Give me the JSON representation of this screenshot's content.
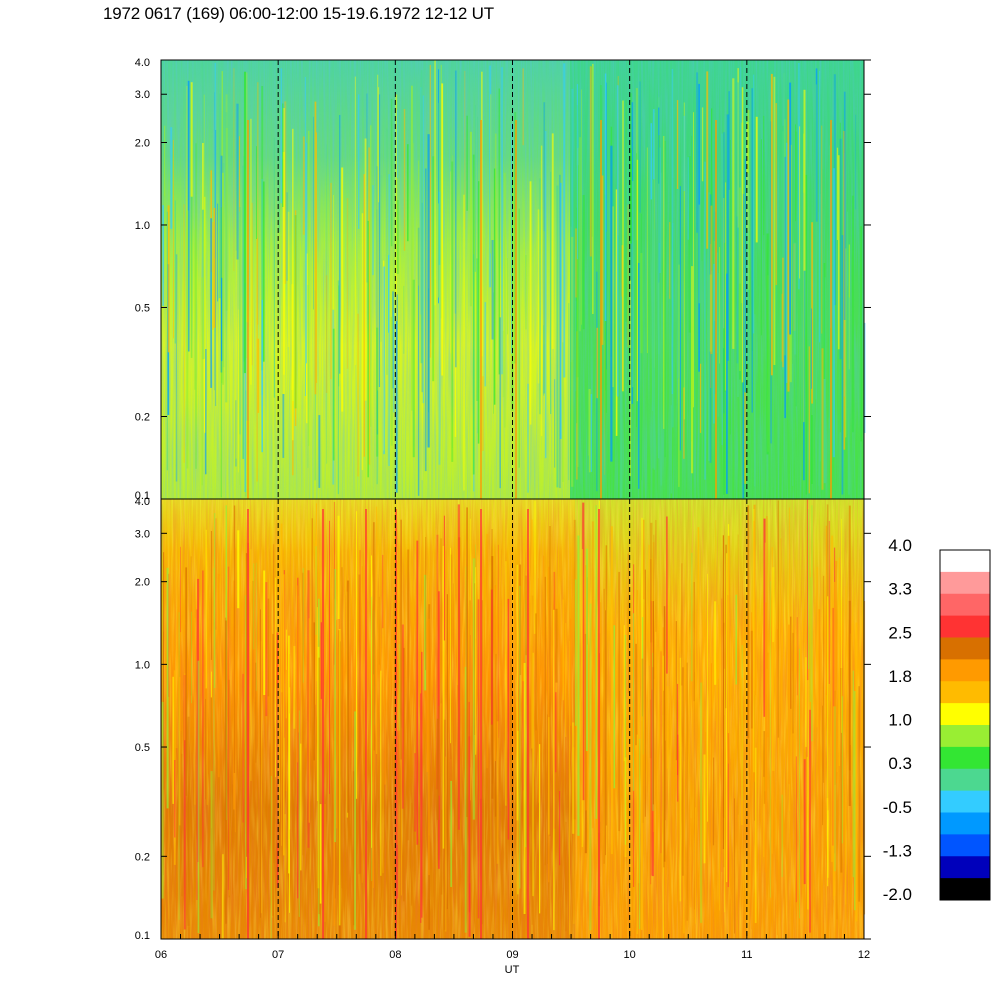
{
  "title": "1972 0617 (169) 06:00-12:00 15-19.6.1972  12-12 UT",
  "chart_data": [
    {
      "type": "heatmap",
      "panel": "upper",
      "x_range": [
        "06",
        "12"
      ],
      "y_scale": "log",
      "y_range": [
        0.1,
        4.0
      ],
      "y_ticks": [
        "4.0",
        "3.0",
        "2.0",
        "1.0",
        "0.5",
        "0.2",
        "0.1"
      ],
      "x_ticks": [
        "06",
        "07",
        "08",
        "09",
        "10",
        "11",
        "12"
      ],
      "dashed_hour_lines": [
        "07",
        "08",
        "09",
        "10",
        "11"
      ],
      "dominant_colors": [
        "yellow-green",
        "green",
        "cyan"
      ],
      "description_level": [
        0.3,
        1.0
      ]
    },
    {
      "type": "heatmap",
      "panel": "lower",
      "x_range": [
        "06",
        "12"
      ],
      "y_scale": "log",
      "y_range": [
        0.1,
        4.0
      ],
      "y_ticks": [
        "4.0",
        "3.0",
        "2.0",
        "1.0",
        "0.5",
        "0.2",
        "0.1"
      ],
      "x_ticks": [
        "06",
        "07",
        "08",
        "09",
        "10",
        "11",
        "12"
      ],
      "xlabel": "UT",
      "dashed_hour_lines": [
        "07",
        "08",
        "09",
        "10",
        "11"
      ],
      "dominant_colors": [
        "orange",
        "dark-orange",
        "yellow"
      ],
      "description_level": [
        1.0,
        2.5
      ]
    }
  ],
  "colorbar": {
    "labels": [
      "4.0",
      "3.3",
      "2.5",
      "1.8",
      "1.0",
      "0.3",
      "-0.5",
      "-1.3",
      "-2.0"
    ],
    "colors": [
      "#ffffff",
      "#ff9a9a",
      "#ff6666",
      "#ff3333",
      "#d87000",
      "#ff9a00",
      "#ffbb00",
      "#ffff00",
      "#99ee33",
      "#33e633",
      "#4cd890",
      "#33ccff",
      "#0099ff",
      "#0055ff",
      "#0000bb",
      "#000000"
    ]
  }
}
